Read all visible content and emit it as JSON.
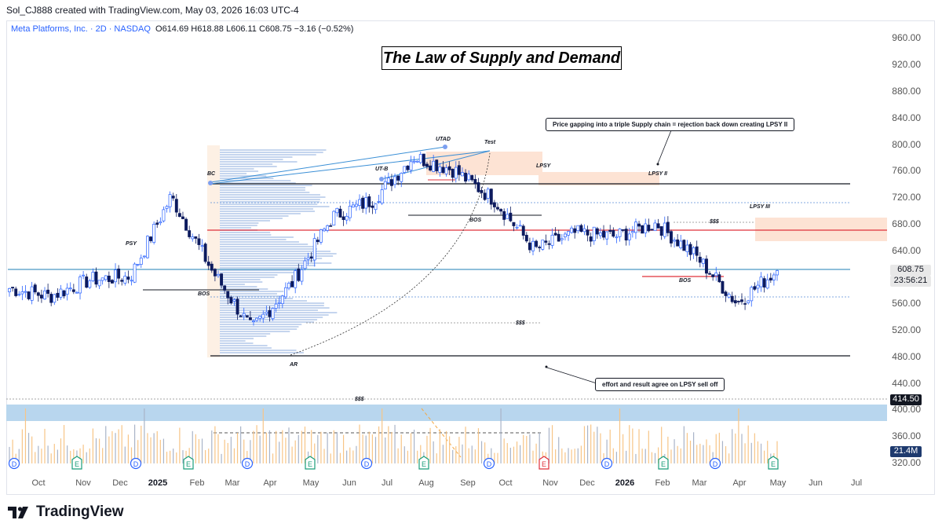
{
  "header": {
    "credit": "Sol_CJ888 created with TradingView.com, May 03, 2026 16:03 UTC-4"
  },
  "legend": {
    "symbol": "Meta Platforms, Inc. · 2D · NASDAQ",
    "o_label": "O",
    "o": "614.69",
    "h_label": "H",
    "h": "618.88",
    "l_label": "L",
    "l": "606.11",
    "c_label": "C",
    "c": "608.75",
    "change": "−3.16 (−0.52%)"
  },
  "title": "The Law of Supply and Demand",
  "notes": {
    "gap_note": "Price gapping into a triple Supply chain = rejection back down creating LPSY II",
    "volume_note": "effort and result agree on LPSY sell off"
  },
  "labels": {
    "psy": "PSY",
    "bc": "BC",
    "bos1": "BOS",
    "ar": "AR",
    "utb": "UT-B",
    "utad": "UTAD",
    "test": "Test",
    "bos2": "BOS",
    "lpsy": "LPSY",
    "lpsy2": "LPSY II",
    "lpsy3": "LPSY III",
    "bos3": "BOS",
    "liq1": "$$$",
    "liq2": "$$$",
    "liq3": "$$$"
  },
  "price_tags": {
    "last_price": "608.75",
    "countdown": "23:56:21",
    "volume_level": "414.50",
    "volume": "21.4M"
  },
  "colors": {
    "up_candle": "#2962ff",
    "down_candle": "#0d1b5e",
    "supply_zone": "#fde3d4",
    "volume_zone": "#b8d6ee",
    "red_line": "#e0303b",
    "blue_line": "#1d7fb5",
    "accent": "#2962ff"
  },
  "event_icons": [
    "D",
    "E",
    "D",
    "E",
    "D",
    "E",
    "D",
    "E",
    "D",
    "E",
    "D",
    "E",
    "D",
    "E",
    "D",
    "E"
  ],
  "brand": {
    "name": "TradingView"
  },
  "chart_data": {
    "type": "candlestick",
    "title": "The Law of Supply and Demand",
    "symbol": "Meta Platforms, Inc.",
    "interval": "2D",
    "exchange": "NASDAQ",
    "y_ticks": [
      "960.00",
      "920.00",
      "880.00",
      "840.00",
      "800.00",
      "760.00",
      "720.00",
      "680.00",
      "640.00",
      "600.00",
      "560.00",
      "520.00",
      "480.00",
      "440.00",
      "400.00",
      "360.00",
      "320.00"
    ],
    "x_ticks": [
      "Oct",
      "Nov",
      "Dec",
      "2025",
      "Feb",
      "Mar",
      "Apr",
      "May",
      "Jun",
      "Jul",
      "Aug",
      "Sep",
      "Oct",
      "Nov",
      "Dec",
      "2026",
      "Feb",
      "Mar",
      "Apr",
      "May",
      "Jun",
      "Jul"
    ],
    "ylim": [
      300,
      980
    ],
    "key_levels": [
      {
        "name": "BC",
        "value": 740
      },
      {
        "name": "LPSY II",
        "value": 742
      },
      {
        "name": "red_resistance",
        "value": 672
      },
      {
        "name": "last_price",
        "value": 608.75
      },
      {
        "name": "range_low",
        "value": 480
      }
    ],
    "closing_path": [
      [
        "Oct",
        582
      ],
      [
        "Nov",
        570
      ],
      [
        "Dec",
        595
      ],
      [
        "2025",
        600
      ],
      [
        "Feb",
        720
      ],
      [
        "Mar",
        610
      ],
      [
        "Apr",
        520
      ],
      [
        "May",
        590
      ],
      [
        "Jun",
        690
      ],
      [
        "Jul",
        715
      ],
      [
        "Aug",
        780
      ],
      [
        "Sep",
        760
      ],
      [
        "Oct",
        715
      ],
      [
        "Nov",
        640
      ],
      [
        "Dec",
        665
      ],
      [
        "2026",
        660
      ],
      [
        "Feb",
        680
      ],
      [
        "Mar",
        630
      ],
      [
        "Apr",
        560
      ],
      [
        "May",
        608.75
      ]
    ]
  }
}
